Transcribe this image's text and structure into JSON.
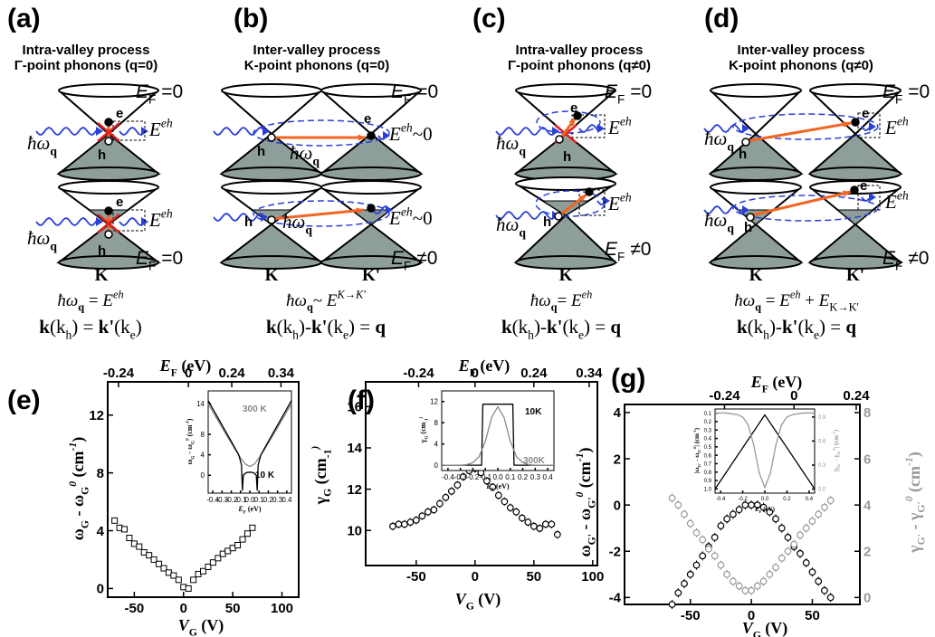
{
  "diagrams": [
    {
      "texts": [
        [
          "(a)"
        ],
        [
          "Intra-valley process"
        ],
        [
          "Γ-point phonons (q=0)"
        ],
        [
          "E",
          "F",
          " =0"
        ],
        [
          "E",
          "eh"
        ],
        [
          "ħω",
          "q"
        ],
        [
          "e"
        ],
        [
          "h"
        ],
        [
          "E",
          "eh"
        ],
        [
          "ħω",
          "q"
        ],
        [
          "e"
        ],
        [
          "h"
        ],
        [
          "E",
          "F",
          " =0"
        ],
        [
          "K"
        ],
        [
          "ħω",
          "q",
          " = ",
          "E",
          "eh"
        ],
        [
          "k",
          "(k",
          "h",
          ") = ",
          "k'",
          "(k",
          "e",
          ")"
        ]
      ]
    },
    {
      "texts": [
        [
          "(b)"
        ],
        [
          "Inter-valley process"
        ],
        [
          "K-point phonons (q=0)"
        ],
        [
          "E",
          "F",
          " =0"
        ],
        [
          "E",
          "eh",
          "~0"
        ],
        [
          "ħω",
          "q"
        ],
        [
          "h"
        ],
        [
          "e"
        ],
        [
          "E",
          "eh",
          "~0"
        ],
        [
          "ħω",
          "q"
        ],
        [
          "h"
        ],
        [
          "E",
          "F",
          " ≠0"
        ],
        [
          "K"
        ],
        [
          "K'"
        ],
        [
          "ħω",
          "q",
          "~ ",
          "E",
          "K→K'"
        ],
        [
          "k",
          "(k",
          "h",
          ")-",
          "k'",
          "(k",
          "e",
          ") = ",
          "q"
        ]
      ]
    },
    {
      "texts": [
        [
          "(c)"
        ],
        [
          "Intra-valley process"
        ],
        [
          "Γ-point phonons (q≠0)"
        ],
        [
          "E",
          "F",
          " =0"
        ],
        [
          "E",
          "eh"
        ],
        [
          "ħω",
          "q"
        ],
        [
          "e"
        ],
        [
          "h"
        ],
        [
          "E",
          "eh"
        ],
        [
          "ħω",
          "q"
        ],
        [
          "h"
        ],
        [
          "E",
          "F",
          " ≠0"
        ],
        [
          "K"
        ],
        [
          "ħω",
          "q",
          "= ",
          "E",
          "eh"
        ],
        [
          "k",
          "(k",
          "h",
          ")-",
          "k'",
          "(k",
          "e",
          ") = ",
          "q"
        ]
      ]
    },
    {
      "texts": [
        [
          "(d)"
        ],
        [
          "Inter-valley process"
        ],
        [
          "K-point phonons (q≠0)"
        ],
        [
          "E",
          "F",
          " =0"
        ],
        [
          "E",
          "eh"
        ],
        [
          "ħω",
          "q"
        ],
        [
          "h"
        ],
        [
          "e"
        ],
        [
          "E",
          "eh"
        ],
        [
          "ħω",
          "q"
        ],
        [
          "h"
        ],
        [
          "e"
        ],
        [
          "E",
          "F",
          " ≠0"
        ],
        [
          "K"
        ],
        [
          "K'"
        ],
        [
          "ħω",
          "q",
          " = ",
          "E",
          "eh",
          " + ",
          "E",
          "K→K'"
        ],
        [
          "k",
          "(k",
          "h",
          ")-",
          "k'",
          "(k",
          "e",
          ") = ",
          "q"
        ]
      ]
    }
  ],
  "chart_data": [
    {
      "type": "scatter",
      "panel_label": "(e)",
      "xlabel": [
        "V",
        "G",
        " (V)"
      ],
      "ylabel": [
        "ω",
        "G",
        " - ω",
        "G",
        "0",
        " (cm",
        "-1",
        ")"
      ],
      "x2label": [
        "E",
        "F",
        " (eV)"
      ],
      "xlim": [
        -77,
        117
      ],
      "xticks": [
        -50,
        0,
        50,
        100
      ],
      "ylim": [
        -0.6,
        14.3
      ],
      "yticks": [
        0,
        4,
        8,
        12
      ],
      "x2ticks": [
        {
          "value": -66,
          "label": "-0.24"
        },
        {
          "value": 5,
          "label": "0"
        },
        {
          "value": 49,
          "label": "0.24"
        },
        {
          "value": 99,
          "label": "0.34"
        }
      ],
      "series": [
        {
          "color": "#000000",
          "marker": "square",
          "x": [
            -70,
            -65,
            -60,
            -55,
            -50,
            -45,
            -40,
            -35,
            -30,
            -25,
            -20,
            -15,
            -10,
            -5,
            0,
            5,
            10,
            15,
            20,
            25,
            30,
            35,
            40,
            45,
            50,
            55,
            60,
            65,
            70
          ],
          "values": [
            4.7,
            4.2,
            4.1,
            3.5,
            3.1,
            2.9,
            2.5,
            2.3,
            2.0,
            1.7,
            1.4,
            1.1,
            0.9,
            0.6,
            0.1,
            0.0,
            0.6,
            1.0,
            1.2,
            1.5,
            1.8,
            2.1,
            2.4,
            2.6,
            2.8,
            3.0,
            3.4,
            3.8,
            4.2
          ]
        }
      ]
    },
    {
      "type": "line",
      "xlabel": [
        "E",
        "F",
        " (eV)"
      ],
      "ylabel": [
        "ω",
        "G",
        " - ω",
        "G",
        "0",
        " (cm",
        "-1",
        ")"
      ],
      "xlim": [
        -0.45,
        0.45
      ],
      "xticks": [
        -0.4,
        -0.3,
        -0.2,
        -0.1,
        {
          "value": 0,
          "label": "0.0"
        },
        0.1,
        0.2,
        0.3,
        0.4
      ],
      "ylim": [
        -3.5,
        16.5
      ],
      "yticks": [
        0,
        4,
        8,
        14
      ],
      "annotations": [
        "300 K",
        "10 K"
      ],
      "series": [
        {
          "color": "#888888",
          "x": [
            -0.45,
            -0.4,
            -0.35,
            -0.3,
            -0.25,
            -0.2,
            -0.15,
            -0.1,
            -0.05,
            0,
            0.05,
            0.1,
            0.15,
            0.2,
            0.25,
            0.3,
            0.35,
            0.4,
            0.45
          ],
          "values": [
            14.0,
            12.4,
            10.9,
            9.3,
            7.8,
            6.3,
            4.8,
            3.4,
            2.2,
            1.7,
            2.2,
            3.4,
            4.8,
            6.3,
            7.8,
            9.3,
            10.9,
            12.4,
            14.0
          ]
        },
        {
          "color": "#000000",
          "x": [
            -0.45,
            -0.4,
            -0.3,
            -0.2,
            -0.12,
            -0.09,
            -0.08,
            -0.07,
            -0.04,
            0,
            0.04,
            0.07,
            0.08,
            0.09,
            0.12,
            0.2,
            0.3,
            0.4,
            0.45
          ],
          "values": [
            14.6,
            13.0,
            9.8,
            6.6,
            4.0,
            2.0,
            -3.0,
            0.0,
            0.5,
            0.6,
            0.5,
            0.0,
            -3.0,
            2.0,
            4.0,
            6.6,
            9.8,
            13.0,
            14.6
          ]
        }
      ]
    },
    {
      "type": "scatter",
      "panel_label": "(f)",
      "xlabel": [
        "V",
        "G",
        " (V)"
      ],
      "ylabel": [
        "γ",
        "G",
        " (cm",
        "-1",
        ")"
      ],
      "x2label": [
        "E",
        "F",
        " (eV)"
      ],
      "xlim": [
        -93,
        104
      ],
      "xticks": [
        -50,
        0,
        50,
        100
      ],
      "ylim": [
        8.3,
        17.2
      ],
      "yticks": [
        10,
        12,
        14,
        16
      ],
      "x2ticks": [
        {
          "value": -48,
          "label": "-0.24"
        },
        0,
        {
          "value": 50,
          "label": "0.24"
        },
        {
          "value": 97,
          "label": "0.34"
        }
      ],
      "series": [
        {
          "color": "#000000",
          "marker": "circle",
          "error": 0.2,
          "x": [
            -70,
            -65,
            -60,
            -55,
            -50,
            -45,
            -40,
            -35,
            -30,
            -25,
            -20,
            -15,
            -10,
            -5,
            0,
            5,
            10,
            15,
            20,
            25,
            30,
            35,
            40,
            45,
            50,
            55,
            60,
            65,
            70
          ],
          "values": [
            10.2,
            10.3,
            10.3,
            10.4,
            10.5,
            10.7,
            10.9,
            11.0,
            11.3,
            11.6,
            11.9,
            12.2,
            12.6,
            12.9,
            13.0,
            12.8,
            12.4,
            12.1,
            11.7,
            11.4,
            11.1,
            10.9,
            10.6,
            10.4,
            10.2,
            10.1,
            10.3,
            10.3,
            9.8
          ]
        }
      ]
    },
    {
      "type": "line",
      "xlabel": [
        "E",
        "F",
        " (eV)"
      ],
      "ylabel": [
        "γ",
        "G",
        " (cm",
        "-1",
        ")"
      ],
      "xlim": [
        -0.45,
        0.45
      ],
      "xticks": [
        -0.4,
        -0.3,
        -0.2,
        -0.1,
        {
          "value": 0,
          "label": "0.0"
        },
        0.1,
        0.2,
        0.3,
        0.4
      ],
      "ylim": [
        -1,
        14
      ],
      "yticks": [
        0,
        4,
        8,
        12
      ],
      "annotations": [
        "10K",
        "300K"
      ],
      "series": [
        {
          "color": "#000000",
          "x": [
            -0.45,
            -0.13,
            -0.12,
            0.12,
            0.13,
            0.45
          ],
          "values": [
            0,
            0,
            11.5,
            11.5,
            0,
            0
          ]
        },
        {
          "color": "#888888",
          "x": [
            -0.45,
            -0.4,
            -0.35,
            -0.3,
            -0.25,
            -0.2,
            -0.15,
            -0.1,
            -0.05,
            0,
            0.05,
            0.1,
            0.15,
            0.2,
            0.25,
            0.3,
            0.35,
            0.4,
            0.45
          ],
          "values": [
            0,
            0,
            0,
            0,
            0.1,
            0.5,
            1.6,
            4.5,
            9.0,
            11.0,
            9.0,
            4.5,
            1.6,
            0.5,
            0.1,
            0,
            0,
            0,
            0
          ]
        }
      ]
    },
    {
      "type": "scatter",
      "panel_label": "(g)",
      "xlabel": [
        "V",
        "G",
        " (V)"
      ],
      "ylabel": [
        "ω",
        "G'",
        " - ω",
        "G'",
        "0",
        " (cm",
        "-1",
        ")"
      ],
      "y2label": [
        "γ",
        "G'",
        " - γ",
        "G'",
        "0",
        " (cm",
        "-1",
        ")"
      ],
      "x2label": [
        "E",
        "F",
        " (eV)"
      ],
      "xlim": [
        -104,
        89
      ],
      "xticks": [
        -50,
        0,
        50
      ],
      "ylim": [
        -4.3,
        4.35
      ],
      "yticks": [
        -4,
        -2,
        0,
        2,
        4
      ],
      "y2lim": [
        -0.3,
        8.35
      ],
      "y2ticks": [
        0,
        2,
        4,
        6,
        8
      ],
      "y2color": "#999999",
      "x2ticks": [
        {
          "value": -22,
          "label": "-0.24"
        },
        {
          "value": 35,
          "label": "0"
        },
        {
          "value": 86,
          "label": "0.24"
        }
      ],
      "series": [
        {
          "color": "#000000",
          "marker": "circle",
          "error": 0.2,
          "x": [
            -65,
            -60,
            -55,
            -50,
            -45,
            -40,
            -35,
            -30,
            -25,
            -20,
            -15,
            -10,
            -5,
            0,
            5,
            10,
            15,
            20,
            25,
            30,
            35,
            40,
            45,
            50,
            55,
            60,
            65
          ],
          "values": [
            -4.3,
            -3.8,
            -3.4,
            -3.0,
            -2.6,
            -2.2,
            -1.8,
            -1.4,
            -0.9,
            -0.6,
            -0.4,
            -0.2,
            0,
            0,
            0,
            -0.1,
            -0.3,
            -0.6,
            -1.0,
            -1.4,
            -1.8,
            -2.1,
            -2.5,
            -2.9,
            -3.3,
            -3.7,
            -4.0
          ]
        },
        {
          "color": "#999999",
          "marker": "circle",
          "error": 0.2,
          "axis": "y2",
          "x": [
            -65,
            -60,
            -55,
            -50,
            -45,
            -40,
            -35,
            -30,
            -25,
            -20,
            -15,
            -10,
            -5,
            0,
            5,
            10,
            15,
            20,
            25,
            30,
            35,
            40,
            45,
            50,
            55,
            60,
            65
          ],
          "values": [
            4.3,
            4.0,
            3.6,
            3.2,
            2.8,
            2.5,
            2.1,
            1.8,
            1.4,
            1.0,
            0.7,
            0.5,
            0.3,
            0.3,
            0.5,
            0.7,
            1.0,
            1.3,
            1.7,
            2.0,
            2.3,
            2.7,
            3.0,
            3.3,
            3.6,
            3.9,
            4.2
          ]
        }
      ]
    },
    {
      "type": "line",
      "xlabel": [
        "E",
        "F",
        " (eV)"
      ],
      "ylabel": [
        "|ω",
        "G'",
        " - ω",
        "G'",
        "0",
        "| (cm",
        "-1",
        ")"
      ],
      "y2label": [
        "|γ",
        "G'",
        " - γ",
        "G'",
        "0",
        "| (cm",
        "-1",
        ")"
      ],
      "xlim": [
        -0.45,
        0.45
      ],
      "xticks": [
        -0.4,
        -0.2,
        {
          "value": 0,
          "label": "0.0"
        },
        0.2,
        0.4
      ],
      "ylim": [
        1.05,
        0.05
      ],
      "yticks": [
        0.1,
        0.2,
        0.3,
        0.4,
        0.5,
        0.6,
        0.7,
        0.8,
        0.9,
        {
          "value": 1,
          "label": "1.0"
        }
      ],
      "y2lim": [
        -0.05,
        1.0
      ],
      "y2ticks": [
        {
          "value": 0,
          "label": "0.0"
        },
        0.3,
        0.6,
        0.9
      ],
      "y2color": "#999999",
      "series": [
        {
          "color": "#000000",
          "x": [
            -0.45,
            0,
            0.45
          ],
          "values": [
            1.0,
            0.12,
            1.0
          ]
        },
        {
          "color": "#999999",
          "axis": "y2",
          "x": [
            -0.45,
            -0.4,
            -0.35,
            -0.3,
            -0.25,
            -0.2,
            -0.15,
            -0.1,
            -0.05,
            0,
            0.05,
            0.1,
            0.15,
            0.2,
            0.25,
            0.3,
            0.35,
            0.4,
            0.45
          ],
          "values": [
            0.95,
            0.95,
            0.95,
            0.94,
            0.93,
            0.9,
            0.8,
            0.55,
            0.2,
            0.02,
            0.2,
            0.55,
            0.8,
            0.9,
            0.93,
            0.94,
            0.95,
            0.95,
            0.95
          ]
        }
      ]
    }
  ]
}
